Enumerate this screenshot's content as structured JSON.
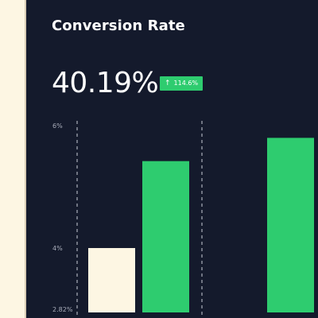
{
  "card": {
    "title": "Conversion Rate",
    "value": "40.19%",
    "badge": {
      "text": "114.6%",
      "icon": "arrow-up-icon",
      "color": "#2ecc6f"
    }
  },
  "chart_data": {
    "type": "bar",
    "ylim": [
      2.82,
      6
    ],
    "yticks": [
      "6%",
      "4%",
      "2.82%"
    ],
    "ytick_values": [
      6,
      4,
      2.82
    ],
    "grid": false,
    "series": [
      {
        "color": "#fdf6e3",
        "values": [
          4,
          2.92
        ]
      },
      {
        "color": "#2ecc6f",
        "values": [
          5.42,
          5.8
        ]
      }
    ]
  }
}
